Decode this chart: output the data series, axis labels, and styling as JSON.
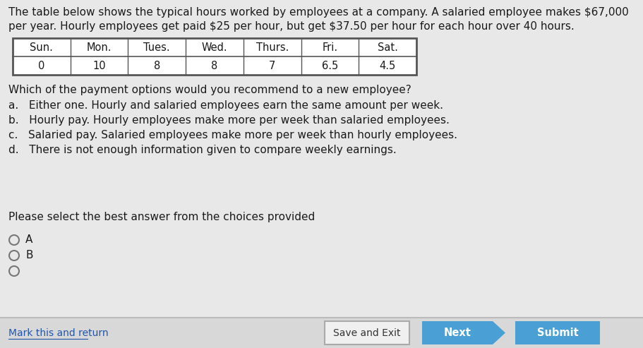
{
  "bg_color": "#e8e8e8",
  "title_line1": "The table below shows the typical hours worked by employees at a company. A salaried employee makes $67,000",
  "title_line2": "per year. Hourly employees get paid $25 per hour, but get $37.50 per hour for each hour over 40 hours.",
  "table_headers": [
    "Sun.",
    "Mon.",
    "Tues.",
    "Wed.",
    "Thurs.",
    "Fri.",
    "Sat."
  ],
  "table_values": [
    "0",
    "10",
    "8",
    "8",
    "7",
    "6.5",
    "4.5"
  ],
  "question": "Which of the payment options would you recommend to a new employee?",
  "option_a": "a.   Either one. Hourly and salaried employees earn the same amount per week.",
  "option_b": "b.   Hourly pay. Hourly employees make more per week than salaried employees.",
  "option_c": "c.   Salaried pay. Salaried employees make more per week than hourly employees.",
  "option_d": "d.   There is not enough information given to compare weekly earnings.",
  "prompt": "Please select the best answer from the choices provided",
  "radio_labels": [
    "A",
    "B"
  ],
  "footer_left": "Mark this and return",
  "btn_save": "Save and Exit",
  "btn_next": "Next",
  "btn_submit": "Submit",
  "btn_blue_color": "#4a9fd4",
  "btn_save_border": "#aaaaaa",
  "text_color": "#1a1a1a",
  "table_border_color": "#555555",
  "table_bg": "#ffffff",
  "footer_bg": "#d8d8d8",
  "footer_line_color": "#bbbbbb",
  "link_color": "#2255aa"
}
